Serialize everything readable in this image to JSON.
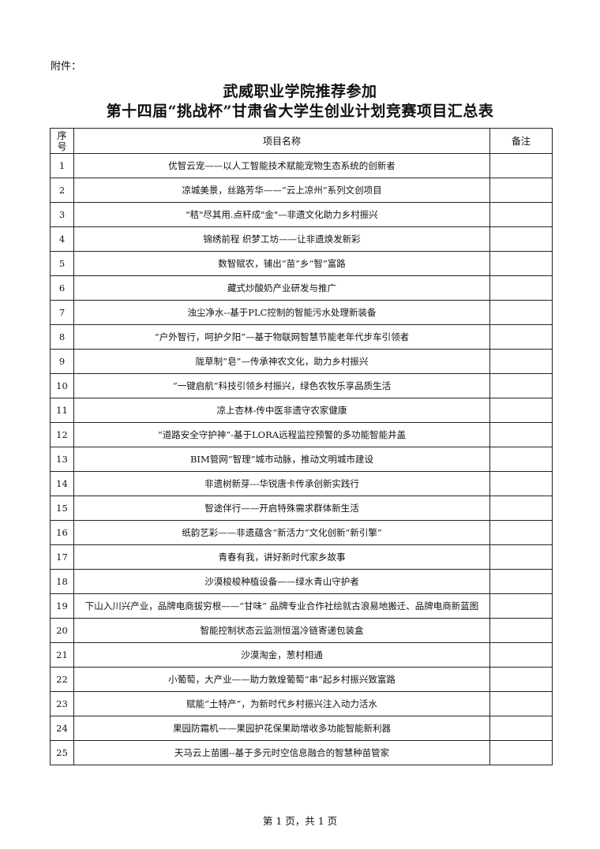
{
  "attachment_label": "附件：",
  "title_line1": "武威职业学院推荐参加",
  "title_line2": "第十四届“挑战杯”甘肃省大学生创业计划竞赛项目汇总表",
  "table": {
    "headers": [
      "序号",
      "项目名称",
      "备注"
    ],
    "rows": [
      {
        "no": "1",
        "name": "优智云宠——以人工智能技术赋能宠物生态系统的创新者",
        "remark": ""
      },
      {
        "no": "2",
        "name": "凉城美景，丝路芳华——“云上凉州”系列文创项目",
        "remark": ""
      },
      {
        "no": "3",
        "name": "\"秸\"尽其用.点秆成\"金\"—非遗文化助力乡村振兴",
        "remark": ""
      },
      {
        "no": "4",
        "name": "锦绣前程 织梦工坊——让非遗焕发新彩",
        "remark": ""
      },
      {
        "no": "5",
        "name": "数智赋农，铺出“苗”乡“智”富路",
        "remark": ""
      },
      {
        "no": "6",
        "name": "藏式炒酸奶产业研发与推广",
        "remark": ""
      },
      {
        "no": "7",
        "name": "浊尘净水--基于PLC控制的智能污水处理新装备",
        "remark": ""
      },
      {
        "no": "8",
        "name": "“户外智行，呵护夕阳”—基于物联网智慧节能老年代步车引领者",
        "remark": ""
      },
      {
        "no": "9",
        "name": "陇草制“皂”—传承神农文化，助力乡村振兴",
        "remark": ""
      },
      {
        "no": "10",
        "name": "“一键启航”科技引领乡村振兴，绿色农牧乐享品质生活",
        "remark": ""
      },
      {
        "no": "11",
        "name": "凉上杏林-传中医非遗守农家健康",
        "remark": ""
      },
      {
        "no": "12",
        "name": "“道路安全守护神”-基于LORA远程监控预警的多功能智能井盖",
        "remark": ""
      },
      {
        "no": "13",
        "name": "BIM管网“智理”城市动脉，推动文明城市建设",
        "remark": ""
      },
      {
        "no": "14",
        "name": "非遗树新芽---华锐唐卡传承创新实践行",
        "remark": ""
      },
      {
        "no": "15",
        "name": "智途伴行——开启特殊需求群体新生活",
        "remark": ""
      },
      {
        "no": "16",
        "name": "纸韵艺彩——非遗蕴含“新活力”文化创新“新引擎”",
        "remark": ""
      },
      {
        "no": "17",
        "name": "青春有我，讲好新时代家乡故事",
        "remark": ""
      },
      {
        "no": "18",
        "name": "沙漠梭梭种植设备——绿水青山守护者",
        "remark": ""
      },
      {
        "no": "19",
        "name": "下山入川兴产业，品牌电商拔穷根——“甘味” 品牌专业合作社绘就古浪易地搬迁、品牌电商新蓝图",
        "remark": ""
      },
      {
        "no": "20",
        "name": "智能控制状态云监测恒温冷链寄递包装盒",
        "remark": ""
      },
      {
        "no": "21",
        "name": "沙漠淘金，葱村相通",
        "remark": ""
      },
      {
        "no": "22",
        "name": "小葡萄，大产业——助力敦煌葡萄“串”起乡村振兴致富路",
        "remark": ""
      },
      {
        "no": "23",
        "name": "赋能“土特产”，为新时代乡村振兴注入动力活水",
        "remark": ""
      },
      {
        "no": "24",
        "name": "果园防霜机——果园护花保果助增收多功能智能新利器",
        "remark": ""
      },
      {
        "no": "25",
        "name": "天马云上苗圃--基于多元时空信息融合的智慧种苗管家",
        "remark": ""
      }
    ]
  },
  "footer": "第 1 页，共 1 页"
}
